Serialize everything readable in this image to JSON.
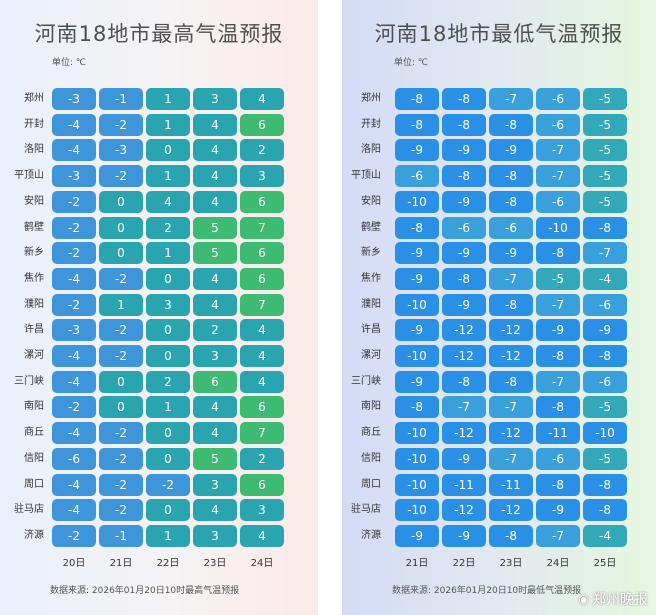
{
  "chart_data": [
    {
      "type": "heatmap",
      "title": "河南18地市最高气温预报",
      "unit": "单位: ℃",
      "source": "数据来源: 2026年01月20日10时最高气温预报",
      "rows": [
        "郑州",
        "开封",
        "洛阳",
        "平顶山",
        "安阳",
        "鹤壁",
        "新乡",
        "焦作",
        "濮阳",
        "许昌",
        "漯河",
        "三门峡",
        "南阳",
        "商丘",
        "信阳",
        "周口",
        "驻马店",
        "济源"
      ],
      "columns": [
        "20日",
        "21日",
        "22日",
        "23日",
        "24日"
      ],
      "values": [
        [
          -3,
          -1,
          1,
          3,
          4
        ],
        [
          -4,
          -2,
          1,
          4,
          6
        ],
        [
          -4,
          -3,
          0,
          4,
          2
        ],
        [
          -3,
          -2,
          1,
          4,
          3
        ],
        [
          -2,
          0,
          4,
          4,
          6
        ],
        [
          -2,
          0,
          2,
          5,
          7
        ],
        [
          -2,
          0,
          1,
          5,
          6
        ],
        [
          -4,
          -2,
          0,
          4,
          6
        ],
        [
          -2,
          1,
          3,
          4,
          7
        ],
        [
          -3,
          -2,
          0,
          2,
          4
        ],
        [
          -4,
          -2,
          0,
          3,
          4
        ],
        [
          -4,
          0,
          2,
          6,
          4
        ],
        [
          -2,
          0,
          1,
          4,
          6
        ],
        [
          -4,
          -2,
          0,
          4,
          7
        ],
        [
          -6,
          -2,
          0,
          5,
          2
        ],
        [
          -4,
          -2,
          -2,
          3,
          6
        ],
        [
          -4,
          -2,
          0,
          4,
          3
        ],
        [
          -2,
          -1,
          1,
          3,
          4
        ]
      ]
    },
    {
      "type": "heatmap",
      "title": "河南18地市最低气温预报",
      "unit": "单位: ℃",
      "source": "数据来源: 2026年01月20日10时最低气温预报",
      "rows": [
        "郑州",
        "开封",
        "洛阳",
        "平顶山",
        "安阳",
        "鹤壁",
        "新乡",
        "焦作",
        "濮阳",
        "许昌",
        "漯河",
        "三门峡",
        "南阳",
        "商丘",
        "信阳",
        "周口",
        "驻马店",
        "济源"
      ],
      "columns": [
        "21日",
        "22日",
        "23日",
        "24日",
        "25日"
      ],
      "values": [
        [
          -8,
          -8,
          -7,
          -6,
          -5
        ],
        [
          -8,
          -8,
          -8,
          -6,
          -5
        ],
        [
          -9,
          -9,
          -9,
          -7,
          -5
        ],
        [
          -6,
          -8,
          -8,
          -7,
          -5
        ],
        [
          -10,
          -9,
          -8,
          -6,
          -5
        ],
        [
          -8,
          -6,
          -6,
          -10,
          -8
        ],
        [
          -9,
          -9,
          -9,
          -8,
          -7
        ],
        [
          -9,
          -8,
          -7,
          -5,
          -4
        ],
        [
          -10,
          -9,
          -8,
          -7,
          -6
        ],
        [
          -9,
          -12,
          -12,
          -9,
          -9
        ],
        [
          -10,
          -12,
          -12,
          -8,
          -8
        ],
        [
          -9,
          -8,
          -8,
          -7,
          -6
        ],
        [
          -8,
          -7,
          -7,
          -8,
          -5
        ],
        [
          -10,
          -12,
          -12,
          -11,
          -10
        ],
        [
          -10,
          -9,
          -7,
          -6,
          -5
        ],
        [
          -10,
          -11,
          -11,
          -8,
          -8
        ],
        [
          -10,
          -12,
          -12,
          -9,
          -8
        ],
        [
          -9,
          -9,
          -8,
          -7,
          -4
        ]
      ]
    }
  ],
  "watermark": "郑州晚报",
  "colors": {
    "max_cold": "#3f95d9",
    "max_mid": "#2aa5b0",
    "max_warm": "#3dbb72",
    "min_colder": "#2a90e6",
    "min_cold": "#3aa0dc",
    "min_mild": "#32a8b8"
  }
}
